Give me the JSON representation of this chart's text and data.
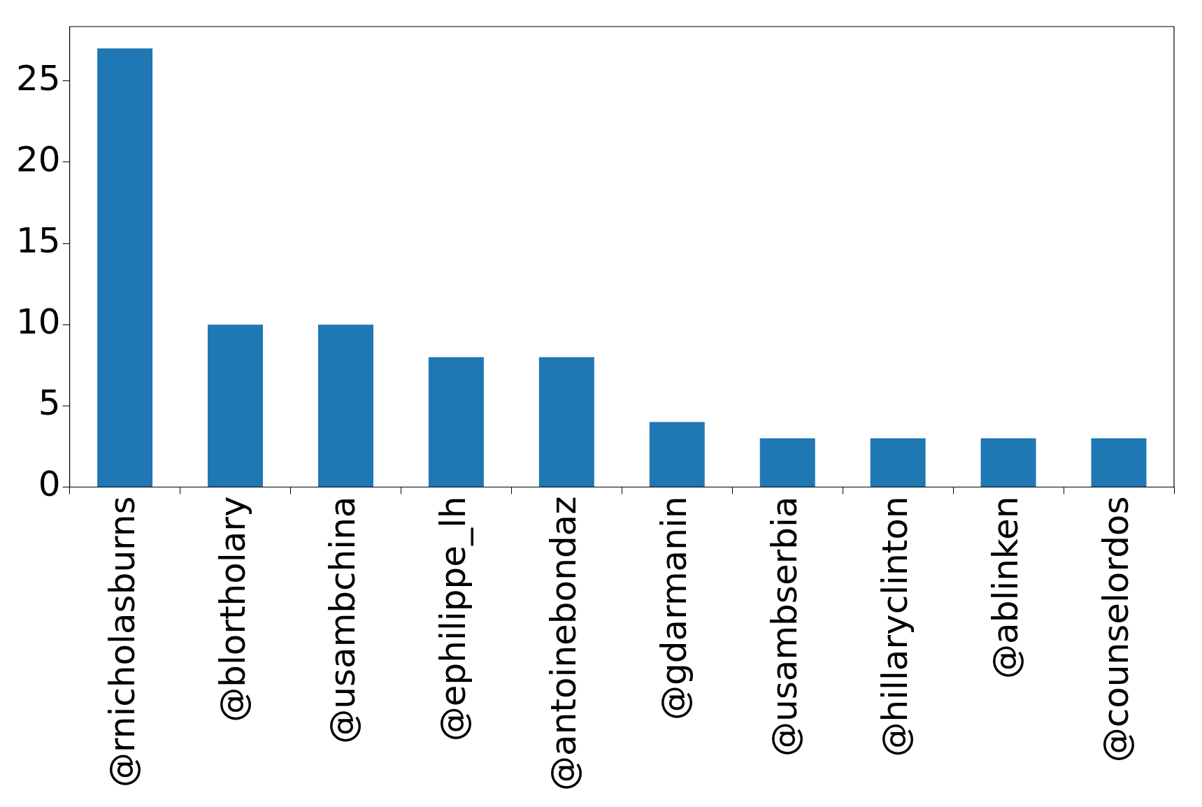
{
  "chart_data": {
    "type": "bar",
    "categories": [
      "@rnicholasburns",
      "@blortholary",
      "@usambchina",
      "@ephilippe_lh",
      "@antoinebondaz",
      "@gdarmanin",
      "@usambserbia",
      "@hillaryclinton",
      "@ablinken",
      "@counselordos"
    ],
    "values": [
      27,
      10,
      10,
      8,
      8,
      4,
      3,
      3,
      3,
      3
    ],
    "color": "#1f77b4",
    "ylim": [
      0,
      28.35
    ],
    "yticks": [
      0,
      5,
      10,
      15,
      20,
      25
    ],
    "grid": false,
    "legend": false
  }
}
